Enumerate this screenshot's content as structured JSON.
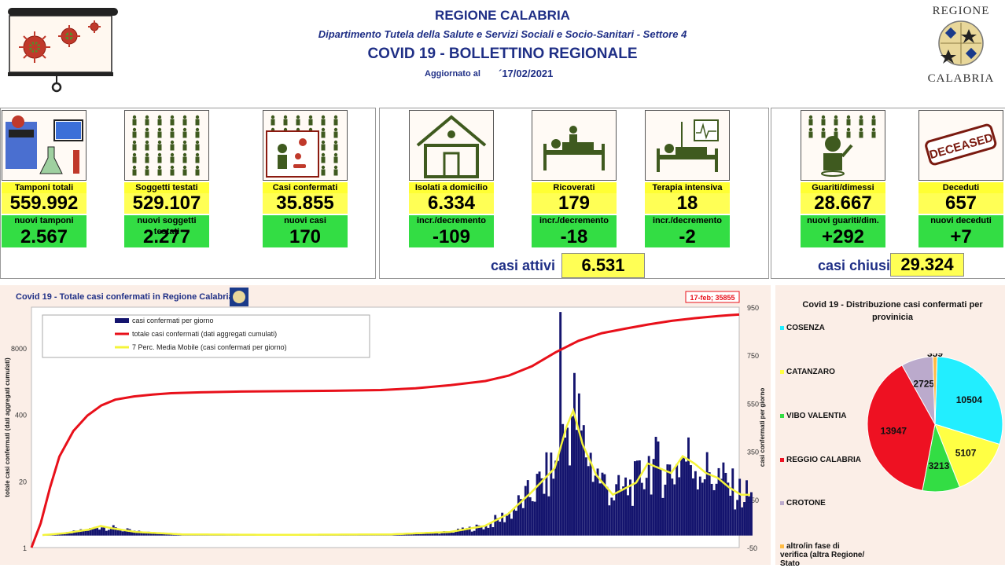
{
  "header": {
    "region": "REGIONE CALABRIA",
    "department": "Dipartimento Tutela della Salute e Servizi Sociali e Socio-Sanitari - Settore 4",
    "title": "COVID 19 - BOLLETTINO REGIONALE",
    "updated_label": "Aggiornato al",
    "updated_date": "´17/02/2021",
    "seal_top": "REGIONE",
    "seal_bottom": "CALABRIA"
  },
  "cards": [
    {
      "label": "Tamponi totali",
      "value": "559.992",
      "sub_label": "nuovi tamponi",
      "sub_value": "2.567",
      "icon": "lab-equipment-icon"
    },
    {
      "label": "Soggetti testati",
      "value": "529.107",
      "sub_label": "nuovi soggetti testati",
      "sub_value": "2.277",
      "icon": "people-grid-icon"
    },
    {
      "label": "Casi confermati",
      "value": "35.855",
      "sub_label": "nuovi casi",
      "sub_value": "170",
      "icon": "infected-person-icon"
    },
    {
      "label": "Isolati a domicilio",
      "value": "6.334",
      "sub_label": "incr./decremento",
      "sub_value": "-109",
      "icon": "house-icon"
    },
    {
      "label": "Ricoverati",
      "value": "179",
      "sub_label": "incr./decremento",
      "sub_value": "-18",
      "icon": "hospital-bed-icon"
    },
    {
      "label": "Terapia intensiva",
      "value": "18",
      "sub_label": "incr./decremento",
      "sub_value": "-2",
      "icon": "icu-bed-icon"
    },
    {
      "label": "Guariti/dimessi",
      "value": "28.667",
      "sub_label": "nuovi guariti/dim.",
      "sub_value": "+292",
      "icon": "recovered-person-icon"
    },
    {
      "label": "Deceduti",
      "value": "657",
      "sub_label": "nuovi deceduti",
      "sub_value": "+7",
      "icon": "deceased-stamp-icon"
    }
  ],
  "deceased_stamp": "DECEASED",
  "summary": {
    "active_label": "casi attivi",
    "active_value": "6.531",
    "closed_label": "casi chiusi",
    "closed_value": "29.324"
  },
  "colors": {
    "navy": "#1f2f86",
    "yellow": "#ffff55",
    "green": "#33dd44",
    "bars": "#14146e",
    "cumulative": "#e8101a",
    "moving_avg": "#f4f43a"
  },
  "chart_data": [
    {
      "type": "bar+line",
      "title": "Covid 19 - Totale casi confermati in Regione Calabria",
      "ylabel_left": "totale casi confermati (dati aggregati cumulati)",
      "ylabel_right": "casi confermati per giorno",
      "left_scale": "log",
      "left_ticks": [
        "1",
        "20",
        "400",
        "8000"
      ],
      "right_ticks": [
        "-50",
        "150",
        "350",
        "550",
        "750",
        "950"
      ],
      "right_ylim": [
        -50,
        950
      ],
      "legend": [
        "casi confermati per giorno",
        "totale casi confermati (dati aggregati cumulati)",
        "7 Perc. Media Mobile (casi confermati per giorno)"
      ],
      "legend_position": "top-left",
      "annotation": "17-feb; 35855",
      "x_range": [
        "2020-03-10",
        "2021-02-17"
      ],
      "cumulative_points": [
        [
          0,
          1
        ],
        [
          4,
          3
        ],
        [
          8,
          15
        ],
        [
          12,
          60
        ],
        [
          18,
          190
        ],
        [
          24,
          380
        ],
        [
          30,
          600
        ],
        [
          36,
          780
        ],
        [
          44,
          900
        ],
        [
          52,
          980
        ],
        [
          60,
          1040
        ],
        [
          75,
          1090
        ],
        [
          90,
          1120
        ],
        [
          110,
          1140
        ],
        [
          130,
          1160
        ],
        [
          150,
          1200
        ],
        [
          165,
          1300
        ],
        [
          180,
          1500
        ],
        [
          195,
          1800
        ],
        [
          205,
          2300
        ],
        [
          215,
          3500
        ],
        [
          225,
          6500
        ],
        [
          235,
          11000
        ],
        [
          245,
          15500
        ],
        [
          255,
          19000
        ],
        [
          265,
          23000
        ],
        [
          275,
          27000
        ],
        [
          285,
          30500
        ],
        [
          295,
          33500
        ],
        [
          300,
          35000
        ],
        [
          304,
          35855
        ]
      ],
      "daily_profile": [
        [
          0,
          2
        ],
        [
          10,
          10
        ],
        [
          20,
          25
        ],
        [
          25,
          40
        ],
        [
          30,
          30
        ],
        [
          40,
          15
        ],
        [
          60,
          5
        ],
        [
          100,
          3
        ],
        [
          150,
          5
        ],
        [
          175,
          15
        ],
        [
          190,
          40
        ],
        [
          200,
          90
        ],
        [
          210,
          180
        ],
        [
          220,
          280
        ],
        [
          225,
          450
        ],
        [
          228,
          520
        ],
        [
          232,
          380
        ],
        [
          238,
          250
        ],
        [
          245,
          170
        ],
        [
          255,
          220
        ],
        [
          260,
          300
        ],
        [
          265,
          280
        ],
        [
          270,
          260
        ],
        [
          275,
          330
        ],
        [
          280,
          300
        ],
        [
          285,
          260
        ],
        [
          290,
          240
        ],
        [
          295,
          200
        ],
        [
          300,
          170
        ],
        [
          304,
          170
        ]
      ],
      "daily_max": 930,
      "daily_max_day": 222
    },
    {
      "type": "pie",
      "title": "Covid 19 - Distribuzione casi confermati per provinicia",
      "legend_position": "left",
      "labels": [
        "COSENZA",
        "CATANZARO",
        "VIBO VALENTIA",
        "REGGIO CALABRIA",
        "CROTONE",
        "altro/in fase di verifica (altra Regione/ Stato"
      ],
      "values": [
        10504,
        5107,
        3213,
        13947,
        2725,
        359
      ],
      "colors": [
        "#22eeff",
        "#ffff44",
        "#33dd44",
        "#ee1122",
        "#bbaacc",
        "#ffbb44"
      ]
    }
  ]
}
